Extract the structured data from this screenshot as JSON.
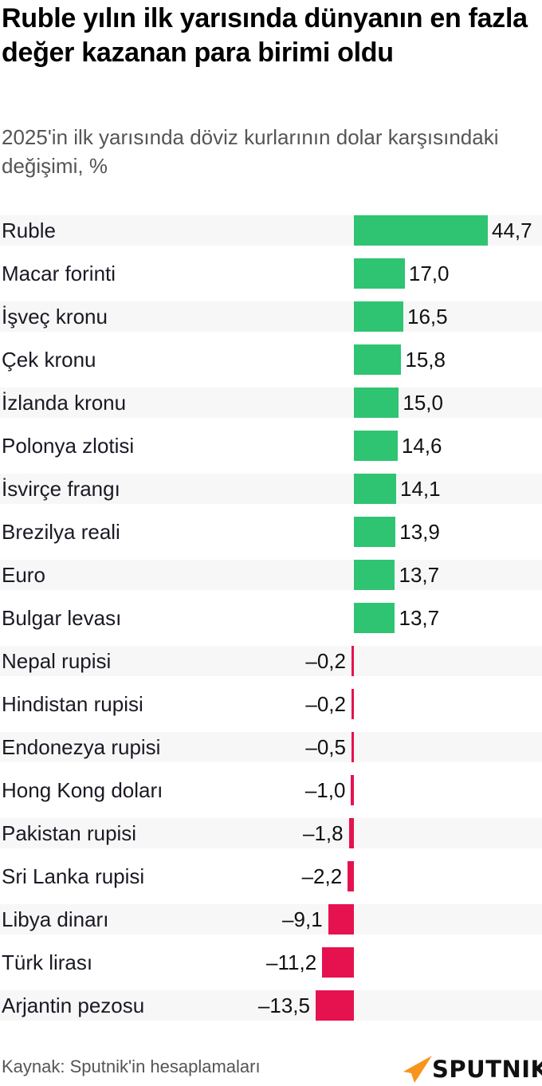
{
  "header": {
    "title": "Ruble yılın ilk yarısında dünyanın en fazla değer kazanan para birimi oldu",
    "subtitle": "2025'in ilk yarısında döviz kurlarının dolar karşısındaki değişimi, %"
  },
  "footer": {
    "source": "Kaynak: Sputnik'in hesaplamaları",
    "logo_text": "SPUTNIK"
  },
  "colors": {
    "positive": "#2ec472",
    "negative": "#e5124f",
    "row_shade": "#f7f7f7",
    "logo_accent": "#f7941d"
  },
  "chart_data": {
    "type": "bar",
    "orientation": "horizontal",
    "title": "Ruble yılın ilk yarısında dünyanın en fazla değer kazanan para birimi oldu",
    "subtitle": "2025'in ilk yarısında döviz kurlarının dolar karşısındaki değişimi, %",
    "xlabel": "",
    "ylabel": "",
    "grid": false,
    "legend": "none",
    "categories": [
      "Ruble",
      "Macar forinti",
      "İşveç kronu",
      "Çek kronu",
      "İzlanda kronu",
      "Polonya zlotisi",
      "İsvirçe frangı",
      "Brezilya reali",
      "Euro",
      "Bulgar levası",
      "Nepal rupisi",
      "Hindistan rupisi",
      "Endonezya rupisi",
      "Hong Kong doları",
      "Pakistan rupisi",
      "Sri Lanka rupisi",
      "Libya dinarı",
      "Türk lirası",
      "Arjantin pezosu"
    ],
    "values": [
      44.7,
      17.0,
      16.5,
      15.8,
      15.0,
      14.6,
      14.1,
      13.9,
      13.7,
      13.7,
      -0.2,
      -0.2,
      -0.5,
      -1.0,
      -1.8,
      -2.2,
      -9.1,
      -11.2,
      -13.5
    ],
    "value_labels": [
      "44,7",
      "17,0",
      "16,5",
      "15,8",
      "15,0",
      "14,6",
      "14,1",
      "13,9",
      "13,7",
      "13,7",
      "–0,2",
      "–0,2",
      "–0,5",
      "–1,0",
      "–1,8",
      "–2,2",
      "–9,1",
      "–11,2",
      "–13,5"
    ],
    "xlim": [
      -13.5,
      44.7
    ]
  },
  "source": "Kaynak: Sputnik'in hesaplamaları"
}
